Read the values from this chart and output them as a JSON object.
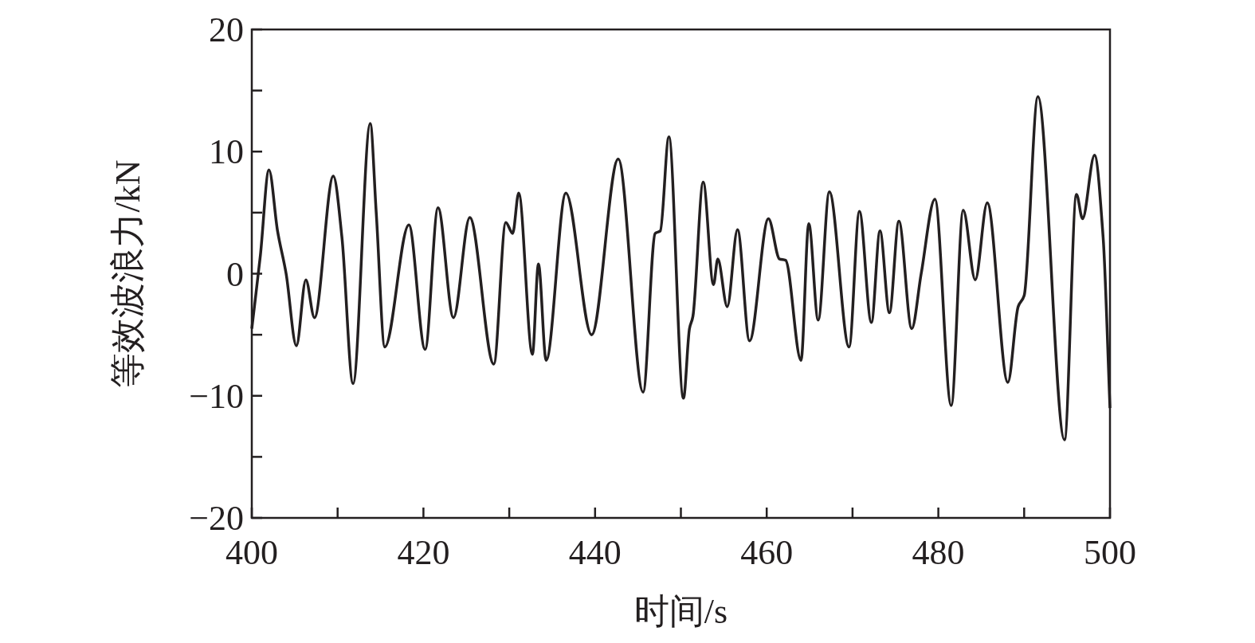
{
  "chart_data": {
    "type": "line",
    "xlabel": "时间/s",
    "ylabel": "等效波浪力/kN",
    "xlim": [
      400,
      500
    ],
    "ylim": [
      -20,
      20
    ],
    "xticks": [
      400,
      {
        "value": 410,
        "label": null
      },
      420,
      {
        "value": 430,
        "label": null
      },
      440,
      {
        "value": 450,
        "label": null
      },
      460,
      {
        "value": 470,
        "label": null
      },
      480,
      {
        "value": 490,
        "label": null
      },
      500
    ],
    "yticks": [
      {
        "value": -20,
        "label": "−20"
      },
      {
        "value": -15,
        "label": null
      },
      {
        "value": -10,
        "label": "−10"
      },
      {
        "value": -5,
        "label": null
      },
      0,
      {
        "value": 5,
        "label": null
      },
      10,
      {
        "value": 15,
        "label": null
      },
      20
    ],
    "marker": "none",
    "line_style": "solid",
    "series": [
      {
        "color": "#231f20",
        "x": [
          400,
          401,
          402,
          403,
          404,
          405.2,
          406.3,
          407.3,
          409.5,
          410.5,
          411.8,
          413.8,
          414.5,
          415.5,
          418.3,
          420.2,
          421.7,
          423.5,
          425.4,
          428.2,
          429.6,
          430.4,
          431.1,
          432.7,
          433.4,
          434.3,
          436.6,
          439.6,
          442.7,
          445.6,
          447,
          447.6,
          448.6,
          450.3,
          451,
          451.4,
          452.6,
          453.8,
          454.3,
          455.4,
          456.6,
          458,
          460.2,
          461.5,
          462.2,
          464,
          464.9,
          466,
          467.3,
          469.6,
          470.8,
          472.2,
          473.2,
          474.3,
          475.4,
          476.9,
          478,
          479.6,
          481.5,
          482.9,
          484.3,
          485.7,
          488.1,
          489.3,
          490,
          491.6,
          494.7,
          496.1,
          496.8,
          498.2,
          499.2,
          500
        ],
        "values": [
          -4.5,
          1.5,
          8.5,
          3.5,
          0,
          -5.9,
          -0.5,
          -3.6,
          8,
          3,
          -9,
          12.3,
          5,
          -6,
          4,
          -6.2,
          5.4,
          -3.6,
          4.6,
          -7.4,
          4.2,
          3.3,
          6.6,
          -6.6,
          0.8,
          -7.1,
          6.6,
          -5,
          9.4,
          -9.7,
          3.3,
          3.5,
          11.2,
          -10.2,
          -4.5,
          -3.5,
          7.5,
          -0.9,
          1.2,
          -2.7,
          3.6,
          -5.5,
          4.5,
          1.2,
          1.1,
          -7.1,
          4.1,
          -3.8,
          6.7,
          -6,
          5.1,
          -4,
          3.5,
          -3.2,
          4.3,
          -4.5,
          0,
          6.1,
          -10.8,
          5.2,
          -0.5,
          5.8,
          -8.9,
          -2.7,
          -1.8,
          14.5,
          -13.6,
          6.5,
          4.5,
          9.7,
          3,
          -11
        ]
      }
    ]
  }
}
